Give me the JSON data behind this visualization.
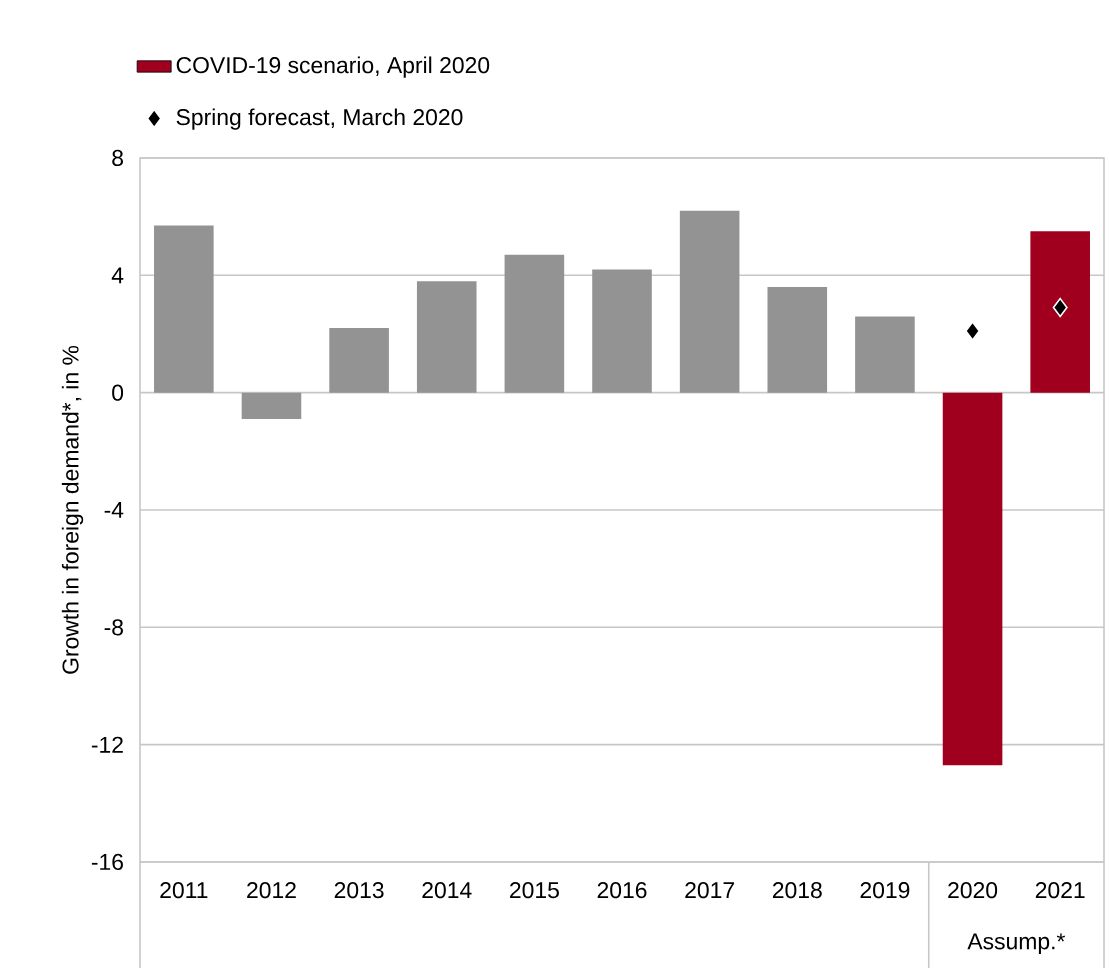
{
  "chart_data": {
    "type": "bar",
    "ylabel": "Growth in foreign demand*, in %",
    "categories": [
      "2011",
      "2012",
      "2013",
      "2014",
      "2015",
      "2016",
      "2017",
      "2018",
      "2019",
      "2020",
      "2021"
    ],
    "series": [
      {
        "color": "#939393",
        "values": [
          5.7,
          -0.9,
          2.2,
          3.8,
          4.7,
          4.2,
          6.2,
          3.6,
          2.6,
          null,
          null
        ]
      },
      {
        "name": "COVID-19 scenario, April 2020",
        "color": "#a0001e",
        "values": [
          null,
          null,
          null,
          null,
          null,
          null,
          null,
          null,
          null,
          -12.7,
          5.5
        ]
      },
      {
        "name": "Spring forecast, March 2020",
        "type": "scatter",
        "marker": "diamond",
        "color": "#000000",
        "values": [
          null,
          null,
          null,
          null,
          null,
          null,
          null,
          null,
          null,
          2.1,
          2.9
        ]
      }
    ],
    "ylim": [
      -16,
      8
    ],
    "yticks": [
      -16,
      -12,
      -8,
      -4,
      0,
      4,
      8
    ],
    "grid": "y",
    "legend": "top left",
    "annotations": [
      "Assump.*"
    ]
  }
}
